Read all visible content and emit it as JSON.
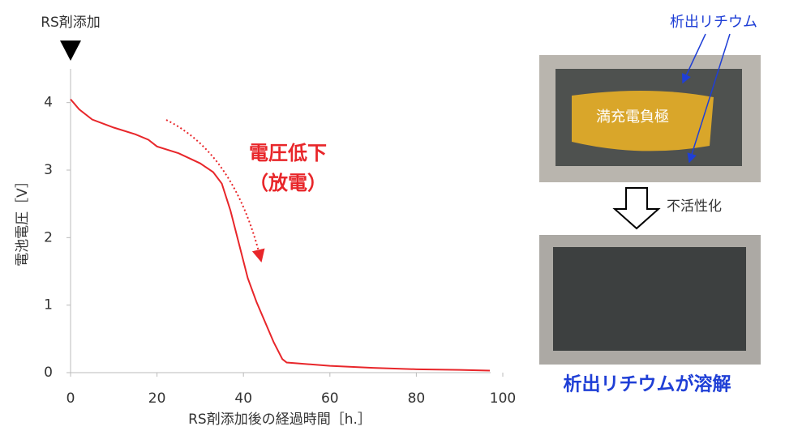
{
  "chart_data": {
    "type": "line",
    "marker_label": "RS剤添加",
    "xlabel": "RS剤添加後の経過時間［h.］",
    "ylabel": "電池電圧［V］",
    "annotation": [
      "電圧低下",
      "（放電）"
    ],
    "xlim": [
      0,
      100
    ],
    "ylim": [
      0,
      4.5
    ],
    "xticks": [
      0,
      20,
      40,
      60,
      80,
      100
    ],
    "yticks": [
      0,
      1,
      2,
      3,
      4
    ],
    "x": [
      0,
      2,
      5,
      10,
      15,
      18,
      20,
      25,
      30,
      33,
      35,
      37,
      39,
      41,
      43,
      45,
      47,
      49,
      50,
      60,
      70,
      80,
      90,
      97
    ],
    "series": [
      {
        "color": "#e8262a",
        "values": [
          4.05,
          3.9,
          3.75,
          3.63,
          3.53,
          3.45,
          3.35,
          3.25,
          3.1,
          2.97,
          2.8,
          2.4,
          1.9,
          1.4,
          1.05,
          0.75,
          0.45,
          0.2,
          0.15,
          0.1,
          0.07,
          0.05,
          0.04,
          0.03
        ]
      }
    ],
    "photo_texts": {
      "deposit": "析出リチウム",
      "electrode": "満充電負極",
      "process": "不活性化",
      "result": "析出リチウムが溶解"
    }
  }
}
